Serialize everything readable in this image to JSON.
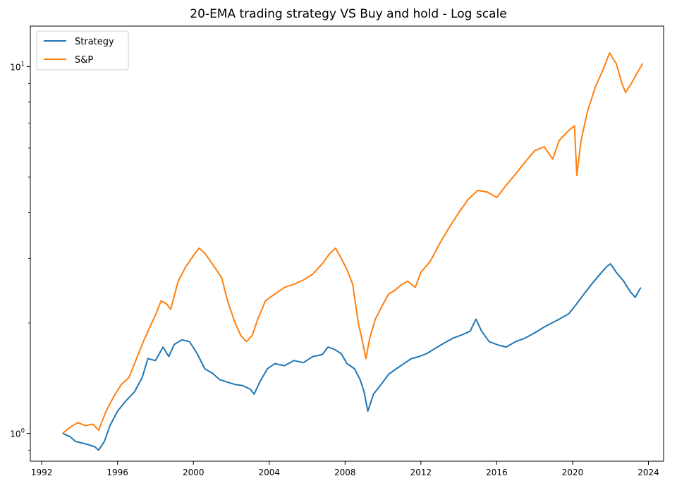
{
  "chart_data": {
    "type": "line",
    "title": "20-EMA trading strategy VS Buy and hold - Log scale",
    "xlabel": "",
    "ylabel": "",
    "y_scale": "log",
    "xlim": [
      1991.4,
      2024.8
    ],
    "ylim": [
      0.84,
      12.9
    ],
    "x_ticks": [
      1992,
      1996,
      2000,
      2004,
      2008,
      2012,
      2016,
      2020,
      2024
    ],
    "x_tick_labels": [
      "1992",
      "1996",
      "2000",
      "2004",
      "2008",
      "2012",
      "2016",
      "2020",
      "2024"
    ],
    "y_ticks": [
      {
        "value": 1,
        "base": "10",
        "exponent": "0"
      },
      {
        "value": 10,
        "base": "10",
        "exponent": "1"
      }
    ],
    "grid": false,
    "legend": {
      "placement": "top-left",
      "entries": [
        {
          "label": "Strategy",
          "color": "#1f77b4"
        },
        {
          "label": "S&P",
          "color": "#ff7f0e"
        }
      ]
    },
    "series": [
      {
        "name": "Strategy",
        "color": "#1f77b4",
        "x": [
          1993.1,
          1993.5,
          1993.8,
          1994.2,
          1994.5,
          1994.8,
          1995.0,
          1995.3,
          1995.6,
          1996.0,
          1996.4,
          1996.9,
          1997.3,
          1997.6,
          1998.0,
          1998.4,
          1998.7,
          1999.0,
          1999.4,
          1999.8,
          2000.2,
          2000.6,
          2001.0,
          2001.4,
          2001.8,
          2002.2,
          2002.6,
          2003.0,
          2003.2,
          2003.5,
          2003.9,
          2004.3,
          2004.8,
          2005.3,
          2005.8,
          2006.3,
          2006.8,
          2007.1,
          2007.4,
          2007.8,
          2008.1,
          2008.5,
          2008.8,
          2009.0,
          2009.2,
          2009.5,
          2009.9,
          2010.3,
          2010.7,
          2011.1,
          2011.5,
          2011.9,
          2012.3,
          2012.7,
          2013.2,
          2013.7,
          2014.2,
          2014.6,
          2014.9,
          2015.2,
          2015.6,
          2016.1,
          2016.5,
          2017.0,
          2017.5,
          2018.0,
          2018.5,
          2018.9,
          2019.3,
          2019.8,
          2020.2,
          2020.6,
          2021.0,
          2021.4,
          2021.8,
          2022.0,
          2022.3,
          2022.7,
          2023.0,
          2023.3,
          2023.6
        ],
        "values": [
          1.0,
          0.98,
          0.95,
          0.94,
          0.93,
          0.92,
          0.9,
          0.95,
          1.05,
          1.15,
          1.22,
          1.3,
          1.42,
          1.6,
          1.58,
          1.72,
          1.62,
          1.75,
          1.8,
          1.78,
          1.65,
          1.5,
          1.46,
          1.4,
          1.38,
          1.36,
          1.35,
          1.32,
          1.28,
          1.38,
          1.5,
          1.55,
          1.53,
          1.58,
          1.56,
          1.62,
          1.64,
          1.72,
          1.7,
          1.65,
          1.55,
          1.5,
          1.4,
          1.3,
          1.15,
          1.28,
          1.36,
          1.45,
          1.5,
          1.55,
          1.6,
          1.62,
          1.65,
          1.7,
          1.76,
          1.82,
          1.86,
          1.9,
          2.05,
          1.9,
          1.78,
          1.74,
          1.72,
          1.78,
          1.82,
          1.88,
          1.95,
          2.0,
          2.05,
          2.12,
          2.25,
          2.4,
          2.55,
          2.7,
          2.85,
          2.9,
          2.75,
          2.6,
          2.45,
          2.35,
          2.5
        ]
      },
      {
        "name": "S&P",
        "color": "#ff7f0e",
        "x": [
          1993.1,
          1993.5,
          1993.9,
          1994.3,
          1994.7,
          1995.0,
          1995.4,
          1995.8,
          1996.2,
          1996.6,
          1997.0,
          1997.4,
          1997.7,
          1998.0,
          1998.3,
          1998.6,
          1998.8,
          1999.2,
          1999.6,
          2000.0,
          2000.3,
          2000.6,
          2000.9,
          2001.2,
          2001.5,
          2001.8,
          2002.2,
          2002.5,
          2002.8,
          2003.1,
          2003.4,
          2003.8,
          2004.3,
          2004.8,
          2005.3,
          2005.8,
          2006.3,
          2006.8,
          2007.2,
          2007.5,
          2007.8,
          2008.1,
          2008.4,
          2008.7,
          2008.9,
          2009.1,
          2009.3,
          2009.6,
          2010.0,
          2010.3,
          2010.6,
          2011.0,
          2011.3,
          2011.7,
          2012.0,
          2012.5,
          2013.0,
          2013.5,
          2014.0,
          2014.5,
          2015.0,
          2015.5,
          2016.0,
          2016.5,
          2017.0,
          2017.5,
          2018.0,
          2018.5,
          2018.95,
          2019.3,
          2019.8,
          2020.1,
          2020.22,
          2020.45,
          2020.8,
          2021.2,
          2021.6,
          2021.95,
          2022.3,
          2022.6,
          2022.8,
          2023.1,
          2023.4,
          2023.7
        ],
        "values": [
          1.0,
          1.04,
          1.07,
          1.05,
          1.06,
          1.02,
          1.15,
          1.26,
          1.36,
          1.42,
          1.6,
          1.8,
          1.95,
          2.1,
          2.3,
          2.25,
          2.18,
          2.6,
          2.85,
          3.05,
          3.2,
          3.1,
          2.95,
          2.8,
          2.65,
          2.3,
          2.0,
          1.85,
          1.78,
          1.85,
          2.05,
          2.3,
          2.4,
          2.5,
          2.55,
          2.62,
          2.72,
          2.9,
          3.1,
          3.2,
          3.0,
          2.8,
          2.55,
          2.0,
          1.8,
          1.6,
          1.82,
          2.05,
          2.25,
          2.4,
          2.45,
          2.55,
          2.6,
          2.5,
          2.75,
          2.95,
          3.3,
          3.65,
          4.0,
          4.35,
          4.6,
          4.55,
          4.4,
          4.75,
          5.1,
          5.5,
          5.9,
          6.05,
          5.6,
          6.3,
          6.7,
          6.9,
          5.05,
          6.3,
          7.6,
          8.8,
          9.8,
          10.9,
          10.2,
          9.0,
          8.5,
          9.0,
          9.6,
          10.2
        ]
      }
    ]
  }
}
